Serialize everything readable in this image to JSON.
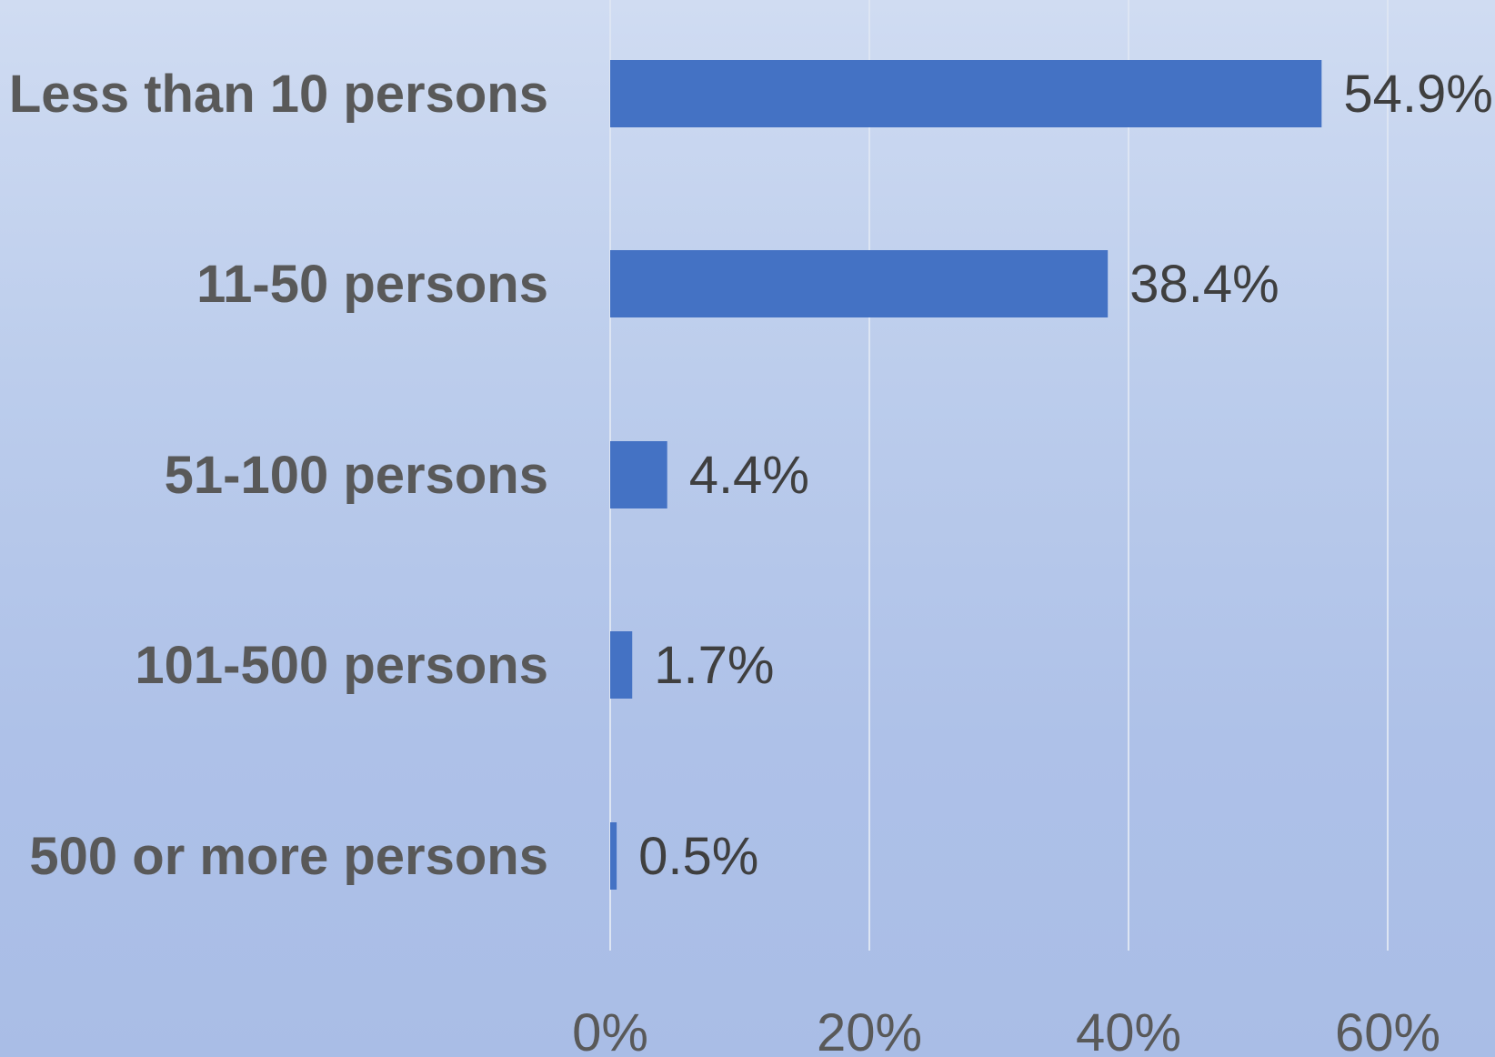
{
  "chart_data": {
    "type": "bar",
    "orientation": "horizontal",
    "categories": [
      "Less than 10 persons",
      "11-50 persons",
      "51-100 persons",
      "101-500 persons",
      "500 or more persons"
    ],
    "values": [
      54.9,
      38.4,
      4.4,
      1.7,
      0.5
    ],
    "value_labels": [
      "54.9%",
      "38.4%",
      "4.4%",
      "1.7%",
      "0.5%"
    ],
    "x_ticks": [
      "0%",
      "20%",
      "40%",
      "60%"
    ],
    "x_tick_values": [
      0,
      20,
      40,
      60
    ],
    "xlim": [
      0,
      60
    ],
    "grid": true,
    "legend": "none",
    "title": "",
    "xlabel": "",
    "ylabel": "",
    "colors": {
      "bar": "#4472c4"
    }
  }
}
